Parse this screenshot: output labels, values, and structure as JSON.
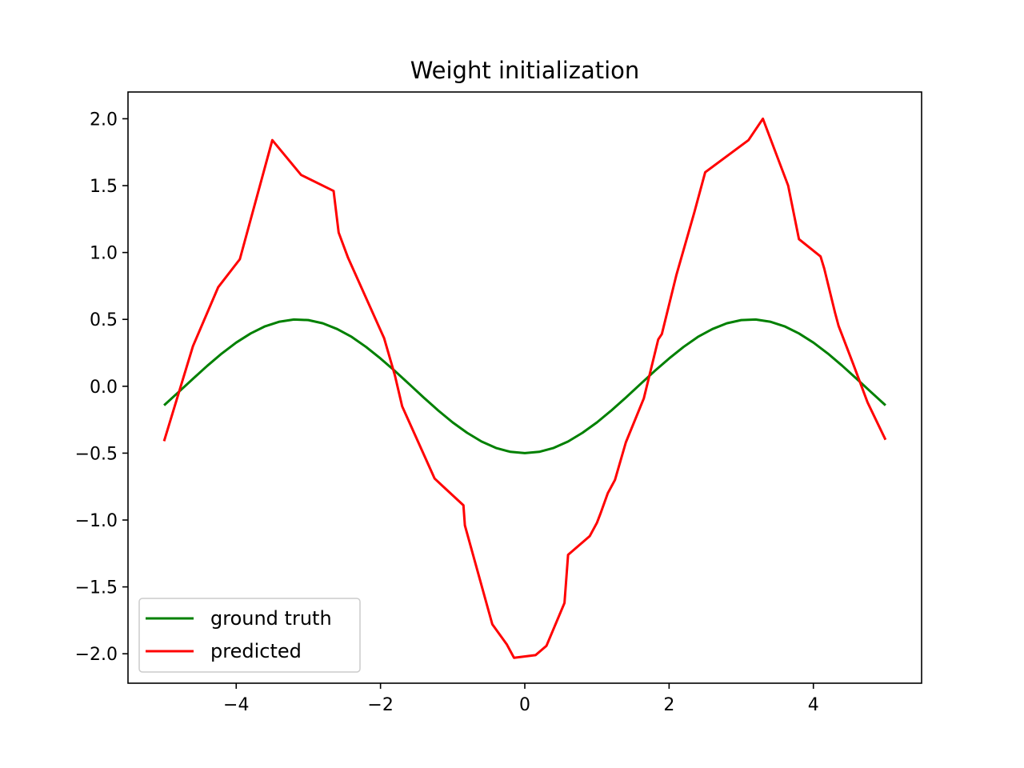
{
  "chart_data": {
    "type": "line",
    "title": "Weight initialization",
    "xlabel": "",
    "ylabel": "",
    "xlim": [
      -5.5,
      5.5
    ],
    "ylim": [
      -2.22,
      2.2
    ],
    "x_ticks": [
      -4,
      -2,
      0,
      2,
      4
    ],
    "x_tick_labels": [
      "−4",
      "−2",
      "0",
      "2",
      "4"
    ],
    "y_ticks": [
      -2.0,
      -1.5,
      -1.0,
      -0.5,
      0.0,
      0.5,
      1.0,
      1.5,
      2.0
    ],
    "y_tick_labels": [
      "−2.0",
      "−1.5",
      "−1.0",
      "−0.5",
      "0.0",
      "0.5",
      "1.0",
      "1.5",
      "2.0"
    ],
    "grid": false,
    "legend": {
      "position": "lower-left",
      "entries": [
        "ground truth",
        "predicted"
      ]
    },
    "series": [
      {
        "name": "ground truth",
        "color": "#008000",
        "x": [
          -5.0,
          -4.8,
          -4.6,
          -4.4,
          -4.2,
          -4.0,
          -3.8,
          -3.6,
          -3.4,
          -3.2,
          -3.0,
          -2.8,
          -2.6,
          -2.4,
          -2.2,
          -2.0,
          -1.8,
          -1.6,
          -1.4,
          -1.2,
          -1.0,
          -0.8,
          -0.6,
          -0.4,
          -0.2,
          0.0,
          0.2,
          0.4,
          0.6,
          0.8,
          1.0,
          1.2,
          1.4,
          1.6,
          1.8,
          2.0,
          2.2,
          2.4,
          2.6,
          2.8,
          3.0,
          3.2,
          3.4,
          3.6,
          3.8,
          4.0,
          4.2,
          4.4,
          4.6,
          4.8,
          5.0
        ],
        "y": [
          -0.142,
          -0.044,
          0.056,
          0.153,
          0.245,
          0.327,
          0.395,
          0.448,
          0.483,
          0.499,
          0.495,
          0.471,
          0.428,
          0.369,
          0.294,
          0.208,
          0.114,
          0.015,
          -0.085,
          -0.181,
          -0.27,
          -0.348,
          -0.413,
          -0.461,
          -0.49,
          -0.5,
          -0.49,
          -0.461,
          -0.413,
          -0.348,
          -0.27,
          -0.181,
          -0.085,
          0.015,
          0.114,
          0.208,
          0.294,
          0.369,
          0.428,
          0.471,
          0.495,
          0.499,
          0.483,
          0.448,
          0.395,
          0.327,
          0.245,
          0.153,
          0.056,
          -0.044,
          -0.142
        ]
      },
      {
        "name": "predicted",
        "color": "#ff0000",
        "x": [
          -5.0,
          -4.6,
          -4.25,
          -3.95,
          -3.5,
          -3.1,
          -2.65,
          -2.58,
          -2.45,
          -2.0,
          -1.95,
          -1.8,
          -1.7,
          -1.25,
          -1.15,
          -0.85,
          -0.83,
          -0.45,
          -0.25,
          -0.15,
          0.15,
          0.3,
          0.55,
          0.6,
          0.9,
          1.0,
          1.05,
          1.15,
          1.25,
          1.4,
          1.65,
          1.85,
          1.9,
          2.1,
          2.35,
          2.5,
          3.1,
          3.3,
          3.65,
          3.8,
          4.1,
          4.15,
          4.3,
          4.35,
          4.55,
          4.75,
          5.0
        ],
        "y": [
          -0.41,
          0.3,
          0.74,
          0.95,
          1.84,
          1.58,
          1.46,
          1.15,
          0.96,
          0.42,
          0.36,
          0.08,
          -0.15,
          -0.69,
          -0.74,
          -0.89,
          -1.04,
          -1.78,
          -1.93,
          -2.03,
          -2.01,
          -1.94,
          -1.62,
          -1.26,
          -1.12,
          -1.02,
          -0.95,
          -0.8,
          -0.7,
          -0.42,
          -0.09,
          0.35,
          0.39,
          0.83,
          1.3,
          1.6,
          1.84,
          2.0,
          1.5,
          1.1,
          0.97,
          0.88,
          0.55,
          0.45,
          0.17,
          -0.12,
          -0.4
        ]
      }
    ]
  }
}
